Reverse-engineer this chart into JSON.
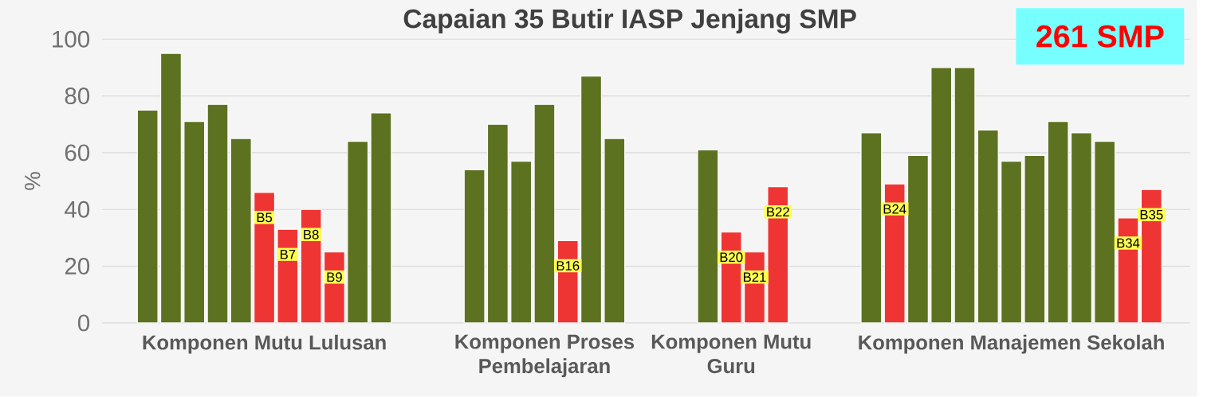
{
  "chart_data": {
    "type": "bar",
    "title": "Capaian 35 Butir IASP Jenjang SMP",
    "ylabel": "%",
    "categories": [
      null,
      null,
      null,
      null,
      null,
      "Komponen Mutu Lulusan",
      null,
      null,
      null,
      null,
      null,
      null,
      null,
      null,
      null,
      null,
      null,
      "Komponen Proses Pembelajaran",
      null,
      null,
      null,
      null,
      null,
      null,
      null,
      "Komponen Mutu Guru",
      null,
      null,
      null,
      null,
      null,
      null,
      null,
      null,
      null,
      null,
      null,
      "Komponen Manajemen Sekolah",
      null,
      null,
      null,
      null,
      null,
      null
    ],
    "values": [
      75,
      95,
      71,
      77,
      65,
      46,
      33,
      40,
      25,
      64,
      74,
      null,
      null,
      null,
      54,
      70,
      57,
      77,
      29,
      87,
      65,
      null,
      null,
      null,
      61,
      32,
      25,
      48,
      null,
      null,
      null,
      67,
      49,
      59,
      90,
      90,
      68,
      57,
      59,
      71,
      67,
      64,
      37,
      47
    ],
    "colors": [
      "#5d7220",
      "#5d7220",
      "#5d7220",
      "#5d7220",
      "#5d7220",
      "#ee3533",
      "#ee3533",
      "#ee3533",
      "#ee3533",
      "#5d7220",
      "#5d7220",
      null,
      null,
      null,
      "#5d7220",
      "#5d7220",
      "#5d7220",
      "#5d7220",
      "#ee3533",
      "#5d7220",
      "#5d7220",
      null,
      null,
      null,
      "#5d7220",
      "#ee3533",
      "#ee3533",
      "#ee3533",
      null,
      null,
      null,
      "#5d7220",
      "#ee3533",
      "#5d7220",
      "#5d7220",
      "#5d7220",
      "#5d7220",
      "#5d7220",
      "#5d7220",
      "#5d7220",
      "#5d7220",
      "#5d7220",
      "#ee3533",
      "#ee3533"
    ],
    "value_labels": [
      null,
      null,
      null,
      null,
      null,
      "B5",
      "B7",
      "B8",
      "B9",
      null,
      null,
      null,
      null,
      null,
      null,
      null,
      null,
      null,
      "B16",
      null,
      null,
      null,
      null,
      null,
      null,
      "B20",
      "B21",
      "B22",
      null,
      null,
      null,
      null,
      "B24",
      null,
      null,
      null,
      null,
      null,
      null,
      null,
      null,
      null,
      "B34",
      "B35"
    ],
    "ylim": [
      0,
      100
    ],
    "yticks": [
      0,
      20,
      40,
      60,
      80,
      100
    ],
    "grid": "y",
    "annotations": [
      "261 SMP"
    ]
  }
}
